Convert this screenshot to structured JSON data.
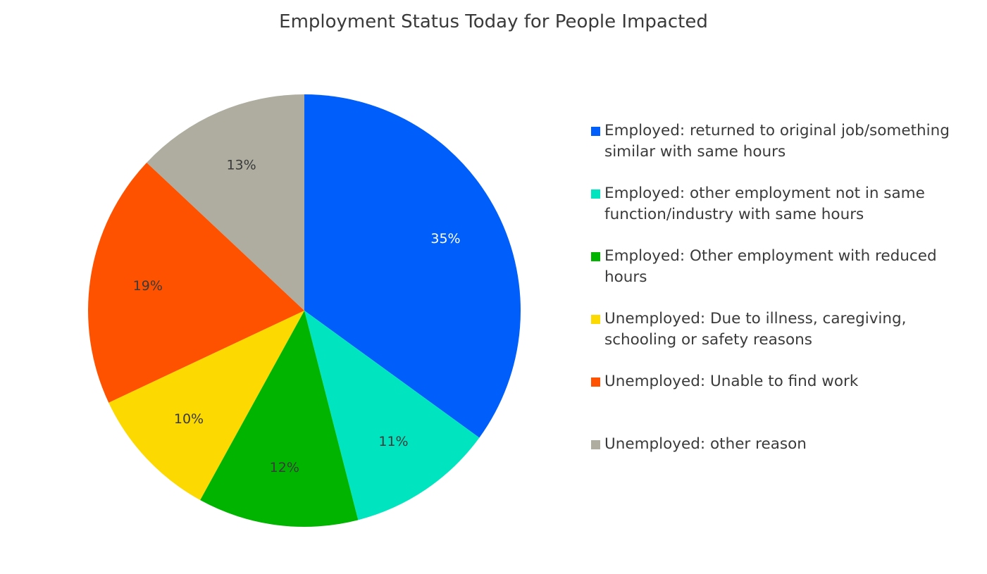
{
  "chart_data": {
    "type": "pie",
    "title": "Employment Status Today for People Impacted",
    "legend_position": "right",
    "slices": [
      {
        "label": "Employed: returned to original job/something similar with same hours",
        "value": 35,
        "value_label": "35%",
        "color": "#005ffa",
        "label_color": "#ffffff"
      },
      {
        "label": "Employed: other employment not in same function/industry with same hours",
        "value": 11,
        "value_label": "11%",
        "color": "#00e5c0",
        "label_color": "#3a3a3a"
      },
      {
        "label": "Employed: Other employment with reduced hours",
        "value": 12,
        "value_label": "12%",
        "color": "#00b400",
        "label_color": "#3a3a3a"
      },
      {
        "label": "Unemployed: Due to illness, caregiving, schooling or safety reasons",
        "value": 10,
        "value_label": "10%",
        "color": "#fcd900",
        "label_color": "#3a3a3a"
      },
      {
        "label": "Unemployed: Unable to find work",
        "value": 19,
        "value_label": "19%",
        "color": "#ff5200",
        "label_color": "#3a3a3a"
      },
      {
        "label": "Unemployed: other reason",
        "value": 13,
        "value_label": "13%",
        "color": "#aeada0",
        "label_color": "#3a3a3a"
      }
    ]
  }
}
